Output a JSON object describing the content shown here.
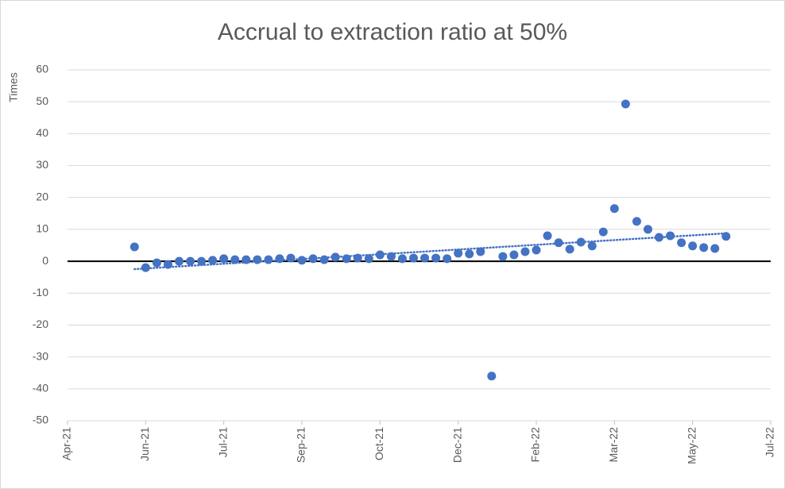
{
  "chart_data": {
    "type": "scatter",
    "title": "Accrual to extraction ratio at 50%",
    "y_label": "Times",
    "x": [
      44342,
      44349,
      44356,
      44363,
      44370,
      44377,
      44384,
      44391,
      44398,
      44405,
      44412,
      44419,
      44426,
      44433,
      44440,
      44447,
      44454,
      44461,
      44468,
      44475,
      44482,
      44489,
      44496,
      44503,
      44510,
      44517,
      44524,
      44531,
      44538,
      44545,
      44552,
      44559,
      44566,
      44573,
      44580,
      44587,
      44594,
      44601,
      44608,
      44615,
      44622,
      44629,
      44636,
      44643,
      44650,
      44657,
      44664,
      44671,
      44678,
      44685,
      44692,
      44699,
      44706,
      44713
    ],
    "values": [
      4.5,
      -2,
      -0.5,
      -1,
      0,
      0,
      0,
      0.3,
      0.8,
      0.5,
      0.5,
      0.5,
      0.5,
      0.8,
      1,
      0.3,
      0.8,
      0.5,
      1.3,
      0.8,
      1,
      0.8,
      2,
      1.5,
      0.8,
      1,
      1,
      1,
      0.8,
      2.5,
      2.3,
      3,
      -36,
      1.5,
      2,
      3,
      3.5,
      8,
      5.8,
      3.8,
      6,
      4.8,
      9.2,
      16.5,
      49.3,
      12.5,
      10,
      7.5,
      8,
      5.8,
      4.8,
      4.3,
      4,
      7.8
    ],
    "color": "#4472c4",
    "trendline": "linear",
    "xlim": [
      44300,
      44741
    ],
    "xticks": [
      {
        "value": 44300,
        "label": "Apr-21"
      },
      {
        "value": 44349,
        "label": "Jun-21"
      },
      {
        "value": 44398,
        "label": "Jul-21"
      },
      {
        "value": 44447,
        "label": "Sep-21"
      },
      {
        "value": 44496,
        "label": "Oct-21"
      },
      {
        "value": 44545,
        "label": "Dec-21"
      },
      {
        "value": 44594,
        "label": "Feb-22"
      },
      {
        "value": 44643,
        "label": "Mar-22"
      },
      {
        "value": 44692,
        "label": "May-22"
      },
      {
        "value": 44741,
        "label": "Jul-22"
      }
    ],
    "ylim": [
      -50,
      60
    ],
    "yticks": [
      -50,
      -40,
      -30,
      -20,
      -10,
      0,
      10,
      20,
      30,
      40,
      50,
      60
    ],
    "grid": true
  }
}
